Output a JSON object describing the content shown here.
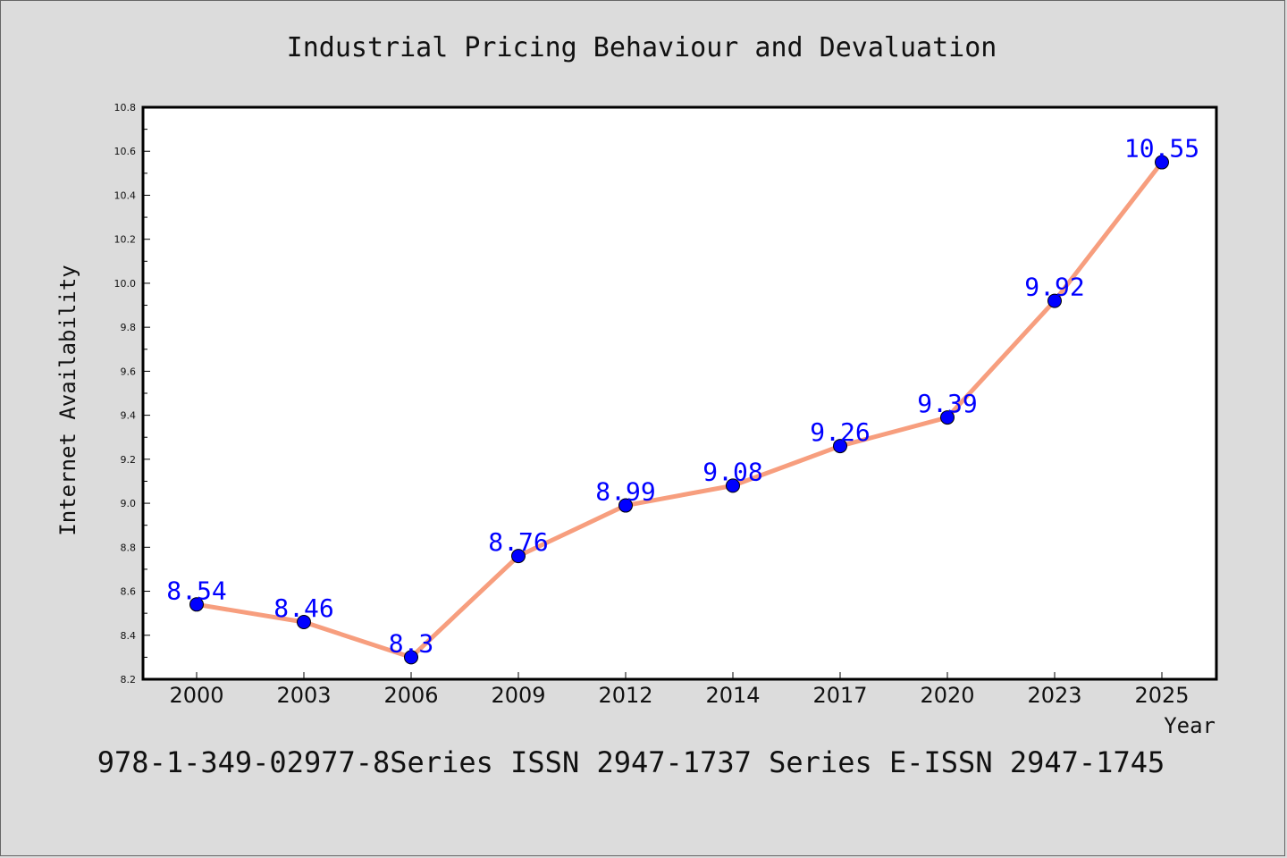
{
  "chart_data": {
    "type": "line",
    "title": "Industrial Pricing Behaviour and Devaluation",
    "xlabel": "Year",
    "ylabel": "Internet Availability",
    "categories": [
      "2000",
      "2003",
      "2006",
      "2009",
      "2012",
      "2014",
      "2017",
      "2020",
      "2023",
      "2025"
    ],
    "series": [
      {
        "values": [
          8.54,
          8.46,
          8.3,
          8.76,
          8.99,
          9.08,
          9.26,
          9.39,
          9.92,
          10.55
        ],
        "labels": [
          "8.54",
          "8.46",
          "8.3",
          "8.76",
          "8.99",
          "9.08",
          "9.26",
          "9.39",
          "9.92",
          "10.55"
        ]
      }
    ],
    "ylim": [
      8.2,
      10.8
    ],
    "yticks": [
      "8.2",
      "8.4",
      "8.6",
      "8.8",
      "9.0",
      "9.2",
      "9.4",
      "9.6",
      "9.8",
      "10.0",
      "10.2",
      "10.4",
      "10.6",
      "10.8"
    ],
    "grid": false,
    "colors": {
      "line": "#f79e7e",
      "marker": "#0000ff",
      "marker_edge": "#000000",
      "data_label": "#0000ff",
      "plot_bg": "#ffffff",
      "page_bg": "#dcdcdc"
    }
  },
  "footer": "978-1-349-02977-8Series ISSN 2947-1737 Series E-ISSN 2947-1745"
}
